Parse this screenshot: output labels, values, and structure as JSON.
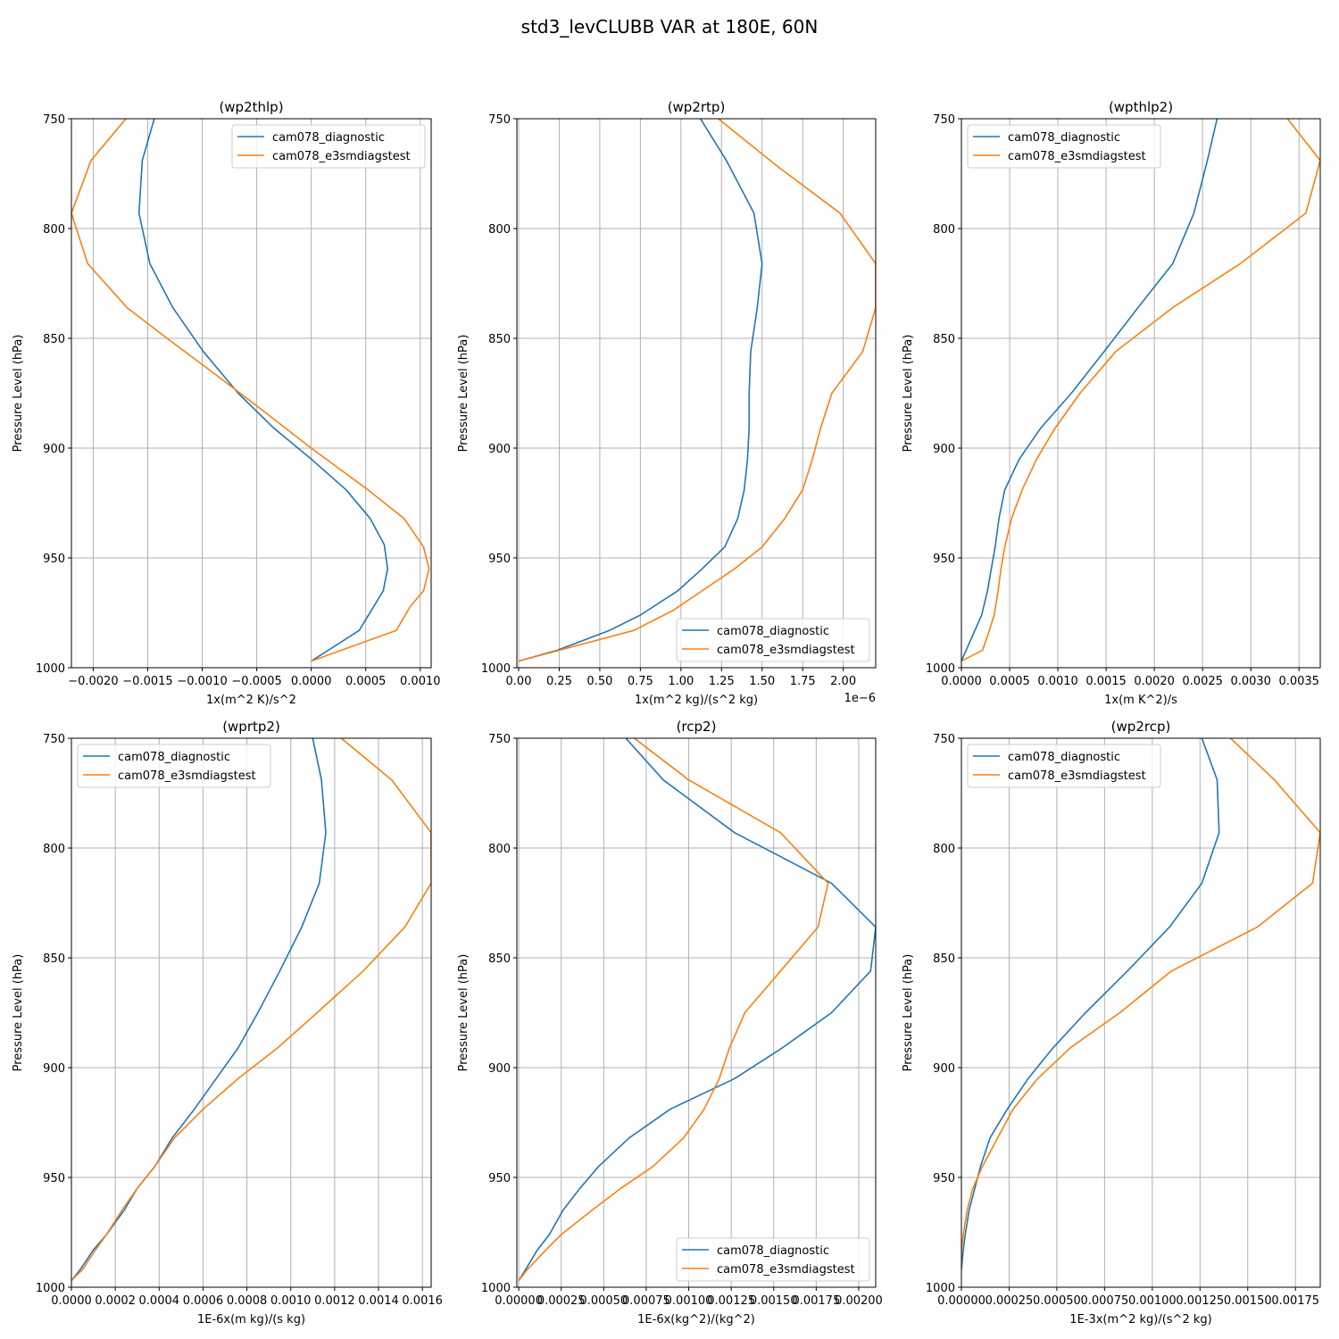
{
  "figure_title": "std3_levCLUBB VAR at 180E, 60N",
  "colors": {
    "diagnostic": "#1f77b4",
    "e3smdiagstest": "#ff7f0e",
    "grid": "#b0b0b0"
  },
  "legend_labels": [
    "cam078_diagnostic",
    "cam078_e3smdiagstest"
  ],
  "chart_data": [
    {
      "type": "line",
      "title": "(wp2thlp)",
      "xlabel": "1x(m^2 K)/s^2",
      "ylabel": "Pressure Level (hPa)",
      "xlim": [
        -0.0022,
        0.0011
      ],
      "ylim": [
        1000,
        750
      ],
      "xticks": [
        -0.002,
        -0.0015,
        -0.001,
        -0.0005,
        0,
        0.0005,
        0.001
      ],
      "xtick_labels": [
        "−0.0020",
        "−0.0015",
        "−0.0010",
        "−0.0005",
        "0.0000",
        "0.0005",
        "0.0010"
      ],
      "yticks": [
        750,
        800,
        850,
        900,
        950,
        1000
      ],
      "ytick_labels": [
        "750",
        "800",
        "850",
        "900",
        "950",
        "1000"
      ],
      "offset_text": "",
      "legend_position": "upper-right",
      "series": [
        {
          "name": "cam078_diagnostic",
          "x": [
            -0.00144,
            -0.00155,
            -0.00158,
            -0.00148,
            -0.00127,
            -0.00099,
            -0.00067,
            -0.00034,
            0.0,
            0.00032,
            0.00054,
            0.00067,
            0.0007,
            0.00066,
            0.00044,
            0.0
          ],
          "y": [
            750,
            769,
            793,
            816,
            836,
            856,
            875,
            891,
            905,
            919,
            932,
            944,
            955,
            965,
            983,
            997
          ]
        },
        {
          "name": "cam078_e3smdiagstest",
          "x": [
            -0.0017,
            -0.00202,
            -0.0022,
            -0.00205,
            -0.00169,
            -0.00127,
            -0.00089,
            -0.00044,
            0.0,
            0.00052,
            0.00085,
            0.00103,
            0.00108,
            0.00103,
            0.00091,
            0.00078,
            0.0
          ],
          "y": [
            750,
            769,
            793,
            816,
            836,
            852,
            866,
            883,
            900,
            919,
            932,
            945,
            955,
            965,
            972,
            983,
            997
          ]
        }
      ]
    },
    {
      "type": "line",
      "title": "(wp2rtp)",
      "xlabel": "1x(m^2 kg)/(s^2 kg)",
      "ylabel": "Pressure Level (hPa)",
      "xlim": [
        -1.1e-08,
        2.2e-06
      ],
      "ylim": [
        1000,
        750
      ],
      "xticks": [
        0,
        2.5e-07,
        5e-07,
        7.5e-07,
        1e-06,
        1.25e-06,
        1.5e-06,
        1.75e-06,
        2e-06
      ],
      "xtick_labels": [
        "0.00",
        "0.25",
        "0.50",
        "0.75",
        "1.00",
        "1.25",
        "1.50",
        "1.75",
        "2.00"
      ],
      "yticks": [
        750,
        800,
        850,
        900,
        950,
        1000
      ],
      "ytick_labels": [
        "750",
        "800",
        "850",
        "900",
        "950",
        "1000"
      ],
      "offset_text": "1e−6",
      "legend_position": "lower-right",
      "series": [
        {
          "name": "cam078_diagnostic",
          "x": [
            1.12e-06,
            1.28e-06,
            1.45e-06,
            1.5e-06,
            1.47e-06,
            1.43e-06,
            1.42e-06,
            1.42e-06,
            1.41e-06,
            1.39e-06,
            1.35e-06,
            1.27e-06,
            1.13e-06,
            9.8e-07,
            7.5e-07,
            5.6e-07,
            2.4e-07,
            0.0
          ],
          "y": [
            750,
            769,
            793,
            816,
            836,
            856,
            875,
            891,
            905,
            919,
            932,
            945,
            955,
            965,
            976,
            983,
            992,
            997
          ]
        },
        {
          "name": "cam078_e3smdiagstest",
          "x": [
            1.23e-06,
            1.6e-06,
            1.98e-06,
            2.2e-06,
            2.2e-06,
            2.12e-06,
            1.93e-06,
            1.86e-06,
            1.81e-06,
            1.75e-06,
            1.64e-06,
            1.5e-06,
            1.33e-06,
            1.13e-06,
            9.5e-07,
            7.1e-07,
            0.0
          ],
          "y": [
            750,
            772,
            793,
            816,
            836,
            856,
            875,
            891,
            905,
            919,
            932,
            945,
            955,
            965,
            974,
            983,
            997
          ]
        }
      ]
    },
    {
      "type": "line",
      "title": "(wpthlp2)",
      "xlabel": "1x(m K^2)/s",
      "ylabel": "Pressure Level (hPa)",
      "xlim": [
        0,
        0.00372
      ],
      "ylim": [
        1000,
        750
      ],
      "xticks": [
        0,
        0.0005,
        0.001,
        0.0015,
        0.002,
        0.0025,
        0.003,
        0.0035
      ],
      "xtick_labels": [
        "0.0000",
        "0.0005",
        "0.0010",
        "0.0015",
        "0.0020",
        "0.0025",
        "0.0030",
        "0.0035"
      ],
      "yticks": [
        750,
        800,
        850,
        900,
        950,
        1000
      ],
      "ytick_labels": [
        "750",
        "800",
        "850",
        "900",
        "950",
        "1000"
      ],
      "offset_text": "",
      "legend_position": "upper-left",
      "series": [
        {
          "name": "cam078_diagnostic",
          "x": [
            0.00265,
            0.00255,
            0.00241,
            0.00219,
            0.00183,
            0.00148,
            0.00114,
            0.00082,
            0.0006,
            0.00045,
            0.00039,
            0.00035,
            0.00031,
            0.00027,
            0.00021,
            0.00014,
            5e-05,
            0.0
          ],
          "y": [
            750,
            769,
            793,
            816,
            836,
            856,
            875,
            891,
            905,
            919,
            932,
            945,
            955,
            965,
            976,
            983,
            992,
            997
          ]
        },
        {
          "name": "cam078_e3smdiagstest",
          "x": [
            0.00338,
            0.00372,
            0.00357,
            0.00289,
            0.00219,
            0.0016,
            0.00123,
            0.00097,
            0.00078,
            0.00063,
            0.00052,
            0.00045,
            0.00041,
            0.00038,
            0.00034,
            0.00029,
            0.00022,
            0.0
          ],
          "y": [
            750,
            769,
            793,
            816,
            836,
            856,
            875,
            891,
            905,
            919,
            932,
            945,
            955,
            965,
            976,
            983,
            992,
            997
          ]
        }
      ]
    },
    {
      "type": "line",
      "title": "(wprtp2)",
      "xlabel": "1E-6x(m kg)/(s kg)",
      "ylabel": "Pressure Level (hPa)",
      "xlim": [
        0,
        0.00164
      ],
      "ylim": [
        1000,
        750
      ],
      "xticks": [
        0,
        0.0002,
        0.0004,
        0.0006,
        0.0008,
        0.001,
        0.0012,
        0.0014,
        0.0016
      ],
      "xtick_labels": [
        "0.0000",
        "0.0002",
        "0.0004",
        "0.0006",
        "0.0008",
        "0.0010",
        "0.0012",
        "0.0014",
        "0.0016"
      ],
      "yticks": [
        750,
        800,
        850,
        900,
        950,
        1000
      ],
      "ytick_labels": [
        "750",
        "800",
        "850",
        "900",
        "950",
        "1000"
      ],
      "offset_text": "",
      "legend_position": "upper-left",
      "series": [
        {
          "name": "cam078_diagnostic",
          "x": [
            0.0011,
            0.00114,
            0.00116,
            0.00113,
            0.00105,
            0.00095,
            0.00085,
            0.00076,
            0.00066,
            0.00056,
            0.00046,
            0.00038,
            0.0003,
            0.00024,
            0.00016,
            0.0001,
            4e-05,
            0.0
          ],
          "y": [
            750,
            769,
            793,
            816,
            836,
            856,
            875,
            891,
            905,
            919,
            932,
            945,
            955,
            965,
            976,
            983,
            992,
            997
          ]
        },
        {
          "name": "cam078_e3smdiagstest",
          "x": [
            0.00123,
            0.00146,
            0.00164,
            0.00164,
            0.00152,
            0.00133,
            0.00112,
            0.00094,
            0.00076,
            0.0006,
            0.00047,
            0.00038,
            0.0003,
            0.00023,
            0.00016,
            0.00011,
            5e-05,
            0.0
          ],
          "y": [
            750,
            769,
            793,
            816,
            836,
            856,
            875,
            891,
            905,
            919,
            932,
            945,
            955,
            965,
            976,
            983,
            992,
            997
          ]
        }
      ]
    },
    {
      "type": "line",
      "title": "(rcp2)",
      "xlabel": "1E-6x(kg^2)/(kg^2)",
      "ylabel": "Pressure Level (hPa)",
      "xlim": [
        -1.1e-05,
        0.0021
      ],
      "ylim": [
        1000,
        750
      ],
      "xticks": [
        0,
        0.00025,
        0.0005,
        0.00075,
        0.001,
        0.00125,
        0.0015,
        0.00175,
        0.002
      ],
      "xtick_labels": [
        "0.00000",
        "0.00025",
        "0.00050",
        "0.00075",
        "0.00100",
        "0.00125",
        "0.00150",
        "0.00175",
        "0.00200"
      ],
      "yticks": [
        750,
        800,
        850,
        900,
        950,
        1000
      ],
      "ytick_labels": [
        "750",
        "800",
        "850",
        "900",
        "950",
        "1000"
      ],
      "offset_text": "",
      "legend_position": "lower-right",
      "series": [
        {
          "name": "cam078_diagnostic",
          "x": [
            0.00063,
            0.00085,
            0.00127,
            0.00184,
            0.0021,
            0.00207,
            0.00184,
            0.00155,
            0.00127,
            0.00089,
            0.00065,
            0.00047,
            0.00036,
            0.00026,
            0.00018,
            0.00011,
            4e-05,
            0.0
          ],
          "y": [
            750,
            769,
            793,
            816,
            836,
            856,
            875,
            891,
            905,
            919,
            932,
            945,
            955,
            965,
            976,
            983,
            992,
            997
          ]
        },
        {
          "name": "cam078_e3smdiagstest",
          "x": [
            0.00068,
            0.001,
            0.00154,
            0.00182,
            0.00176,
            0.00154,
            0.00133,
            0.00124,
            0.00118,
            0.00109,
            0.00097,
            0.00079,
            0.0006,
            0.00043,
            0.00025,
            0.00016,
            5e-05,
            0.0
          ],
          "y": [
            750,
            769,
            793,
            816,
            836,
            856,
            875,
            891,
            905,
            919,
            932,
            945,
            955,
            965,
            976,
            983,
            992,
            997
          ]
        }
      ]
    },
    {
      "type": "line",
      "title": "(wp2rcp)",
      "xlabel": "1E-3x(m^2 kg)/(s^2 kg)",
      "ylabel": "Pressure Level (hPa)",
      "xlim": [
        0,
        0.00188
      ],
      "ylim": [
        1000,
        750
      ],
      "xticks": [
        0,
        0.00025,
        0.0005,
        0.00075,
        0.001,
        0.00125,
        0.0015,
        0.00175
      ],
      "xtick_labels": [
        "0.00000",
        "0.00025",
        "0.00050",
        "0.00075",
        "0.00100",
        "0.00125",
        "0.00150",
        "0.00175"
      ],
      "yticks": [
        750,
        800,
        850,
        900,
        950,
        1000
      ],
      "ytick_labels": [
        "750",
        "800",
        "850",
        "900",
        "950",
        "1000"
      ],
      "offset_text": "",
      "legend_position": "upper-left",
      "series": [
        {
          "name": "cam078_diagnostic",
          "x": [
            0.00126,
            0.00134,
            0.00135,
            0.00126,
            0.00109,
            0.00087,
            0.00065,
            0.00048,
            0.00035,
            0.00024,
            0.00015,
            0.0001,
            7e-05,
            4e-05,
            2e-05,
            1e-05,
            0.0
          ],
          "y": [
            750,
            769,
            793,
            816,
            836,
            856,
            875,
            891,
            905,
            919,
            932,
            945,
            955,
            965,
            976,
            983,
            992
          ]
        },
        {
          "name": "cam078_e3smdiagstest",
          "x": [
            0.00141,
            0.00164,
            0.00188,
            0.00184,
            0.00155,
            0.0011,
            0.00083,
            0.00057,
            0.0004,
            0.00027,
            0.00019,
            0.00011,
            6e-05,
            3e-05,
            1e-05,
            0.0,
            0.0
          ],
          "y": [
            750,
            769,
            793,
            816,
            836,
            856,
            875,
            891,
            905,
            919,
            932,
            945,
            955,
            965,
            976,
            983,
            992
          ]
        }
      ]
    }
  ]
}
